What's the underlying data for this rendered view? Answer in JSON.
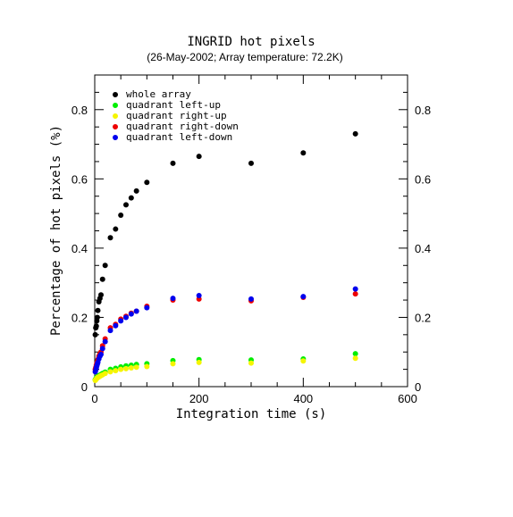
{
  "chart_data": {
    "type": "scatter",
    "title": "INGRID hot pixels",
    "subtitle": "(26-May-2002; Array temperature: 72.2K)",
    "xlabel": "Integration time (s)",
    "ylabel": "Percentage of hot pixels (%)",
    "xlim": [
      0,
      600
    ],
    "ylim": [
      0,
      0.9
    ],
    "x_ticks": [
      0,
      200,
      400,
      600
    ],
    "y_ticks": [
      0,
      0.2,
      0.4,
      0.6,
      0.8
    ],
    "x_tick_labels": [
      "0",
      "200",
      "400",
      "600"
    ],
    "y_tick_labels": [
      "0",
      "0.2",
      "0.4",
      "0.6",
      "0.8"
    ],
    "right_tick_labels": [
      "0",
      "0.2",
      "0.4",
      "0.6",
      "0.8"
    ],
    "grid": false,
    "legend_position": "top-left",
    "series": [
      {
        "name": "whole array",
        "color": "#000000",
        "points": [
          [
            1,
            0.15
          ],
          [
            2,
            0.17
          ],
          [
            3,
            0.175
          ],
          [
            4,
            0.19
          ],
          [
            5,
            0.2
          ],
          [
            6,
            0.22
          ],
          [
            8,
            0.245
          ],
          [
            10,
            0.255
          ],
          [
            12,
            0.265
          ],
          [
            15,
            0.31
          ],
          [
            20,
            0.35
          ],
          [
            30,
            0.43
          ],
          [
            40,
            0.455
          ],
          [
            50,
            0.495
          ],
          [
            60,
            0.525
          ],
          [
            70,
            0.545
          ],
          [
            80,
            0.565
          ],
          [
            100,
            0.59
          ],
          [
            150,
            0.645
          ],
          [
            200,
            0.665
          ],
          [
            300,
            0.645
          ],
          [
            400,
            0.675
          ],
          [
            500,
            0.73
          ]
        ]
      },
      {
        "name": "quadrant left-up",
        "color": "#00ee00",
        "points": [
          [
            1,
            0.02
          ],
          [
            2,
            0.022
          ],
          [
            3,
            0.025
          ],
          [
            4,
            0.027
          ],
          [
            5,
            0.028
          ],
          [
            6,
            0.03
          ],
          [
            8,
            0.032
          ],
          [
            10,
            0.033
          ],
          [
            12,
            0.035
          ],
          [
            15,
            0.038
          ],
          [
            20,
            0.042
          ],
          [
            30,
            0.05
          ],
          [
            40,
            0.053
          ],
          [
            50,
            0.057
          ],
          [
            60,
            0.06
          ],
          [
            70,
            0.062
          ],
          [
            80,
            0.064
          ],
          [
            100,
            0.066
          ],
          [
            150,
            0.075
          ],
          [
            200,
            0.078
          ],
          [
            300,
            0.077
          ],
          [
            400,
            0.08
          ],
          [
            500,
            0.095
          ]
        ]
      },
      {
        "name": "quadrant right-up",
        "color": "#f5f500",
        "points": [
          [
            1,
            0.018
          ],
          [
            2,
            0.02
          ],
          [
            3,
            0.022
          ],
          [
            4,
            0.024
          ],
          [
            5,
            0.025
          ],
          [
            6,
            0.027
          ],
          [
            8,
            0.028
          ],
          [
            10,
            0.03
          ],
          [
            12,
            0.032
          ],
          [
            15,
            0.034
          ],
          [
            20,
            0.038
          ],
          [
            30,
            0.043
          ],
          [
            40,
            0.046
          ],
          [
            50,
            0.05
          ],
          [
            60,
            0.052
          ],
          [
            70,
            0.054
          ],
          [
            80,
            0.056
          ],
          [
            100,
            0.058
          ],
          [
            150,
            0.066
          ],
          [
            200,
            0.07
          ],
          [
            300,
            0.068
          ],
          [
            400,
            0.074
          ],
          [
            500,
            0.082
          ]
        ]
      },
      {
        "name": "quadrant right-down",
        "color": "#ee0000",
        "points": [
          [
            1,
            0.05
          ],
          [
            2,
            0.055
          ],
          [
            3,
            0.062
          ],
          [
            4,
            0.068
          ],
          [
            5,
            0.072
          ],
          [
            6,
            0.078
          ],
          [
            8,
            0.088
          ],
          [
            10,
            0.095
          ],
          [
            12,
            0.1
          ],
          [
            15,
            0.118
          ],
          [
            20,
            0.138
          ],
          [
            30,
            0.17
          ],
          [
            40,
            0.18
          ],
          [
            50,
            0.195
          ],
          [
            60,
            0.203
          ],
          [
            70,
            0.212
          ],
          [
            80,
            0.218
          ],
          [
            100,
            0.232
          ],
          [
            150,
            0.25
          ],
          [
            200,
            0.253
          ],
          [
            300,
            0.248
          ],
          [
            400,
            0.258
          ],
          [
            500,
            0.268
          ]
        ]
      },
      {
        "name": "quadrant left-down",
        "color": "#0000ee",
        "points": [
          [
            1,
            0.043
          ],
          [
            2,
            0.048
          ],
          [
            3,
            0.055
          ],
          [
            4,
            0.06
          ],
          [
            5,
            0.065
          ],
          [
            6,
            0.07
          ],
          [
            8,
            0.08
          ],
          [
            10,
            0.088
          ],
          [
            12,
            0.093
          ],
          [
            15,
            0.11
          ],
          [
            20,
            0.13
          ],
          [
            30,
            0.162
          ],
          [
            40,
            0.176
          ],
          [
            50,
            0.19
          ],
          [
            60,
            0.2
          ],
          [
            70,
            0.21
          ],
          [
            80,
            0.218
          ],
          [
            100,
            0.228
          ],
          [
            150,
            0.255
          ],
          [
            200,
            0.263
          ],
          [
            300,
            0.253
          ],
          [
            400,
            0.26
          ],
          [
            500,
            0.282
          ]
        ]
      }
    ]
  }
}
